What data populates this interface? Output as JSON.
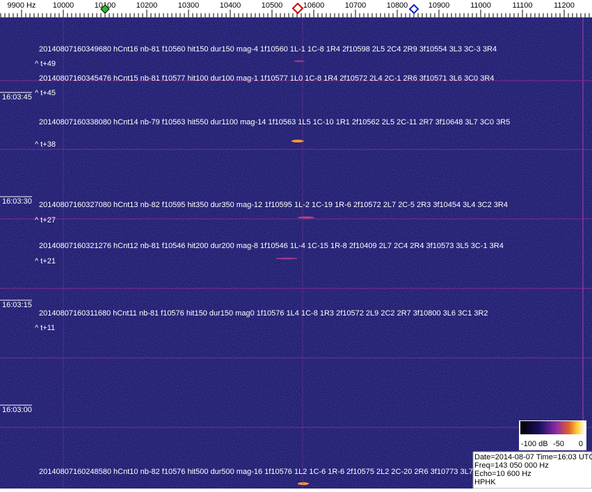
{
  "frequency_axis": {
    "ticks": [
      "9900 Hz",
      "10000",
      "10100",
      "10200",
      "10300",
      "10400",
      "10500",
      "10600",
      "10700",
      "10800",
      "10900",
      "11000",
      "11100",
      "11200"
    ]
  },
  "time_labels": [
    "16:03:45",
    "16:03:30",
    "16:03:15",
    "16:03:00"
  ],
  "detections": [
    {
      "text": "20140807160349680 hCnt16 nb-81 f10560 hit150 dur150 mag-4 1f10560 1L-1 1C-8 1R4 2f10598 2L5 2C4 2R9 3f10554 3L3 3C-3 3R4",
      "offset": "^ t+49"
    },
    {
      "text": "20140807160345476 hCnt15 nb-81 f10577 hit100 dur100 mag-1 1f10577 1L0 1C-8 1R4 2f10572 2L4 2C-1 2R6 3f10571 3L6 3C0 3R4",
      "offset": "^ t+45"
    },
    {
      "text": "20140807160338080 hCnt14 nb-79 f10563 hit550 dur1100 mag-14 1f10563 1L5 1C-10 1R1 2f10562 2L5 2C-11 2R7 3f10648 3L7 3C0 3R5",
      "offset": "^ t+38"
    },
    {
      "text": "20140807160327080 hCnt13 nb-82 f10595 hit350 dur350 mag-12 1f10595 1L-2 1C-19 1R-6 2f10572 2L7 2C-5 2R3 3f10454 3L4 3C2 3R4",
      "offset": "^ t+27"
    },
    {
      "text": "20140807160321276 hCnt12 nb-81 f10546 hit200 dur200 mag-8 1f10546 1L-4 1C-15 1R-8 2f10409 2L7 2C4 2R4 3f10573 3L5 3C-1 3R4",
      "offset": "^ t+21"
    },
    {
      "text": "20140807160311680 hCnt11 nb-81 f10576 hit150 dur150 mag0 1f10576 1L4 1C-8 1R3 2f10572 2L9 2C2 2R7 3f10800 3L6 3C1 3R2",
      "offset": "^ t+11"
    },
    {
      "text": "20140807160248580 hCnt10 nb-82 f10576 hit500 dur500 mag-16 1f10576 1L2 1C-6 1R-6 2f10575 2L2 2C-20 2R6 3f10773 3L7"
    }
  ],
  "color_scale": {
    "labels": [
      "-100 dB",
      "-50",
      "0"
    ]
  },
  "info": [
    "Date=2014-08-07 Time=16:03 UTC",
    "Freq=143 050 000 Hz",
    "Echo=10 600 Hz",
    "HPHK"
  ]
}
